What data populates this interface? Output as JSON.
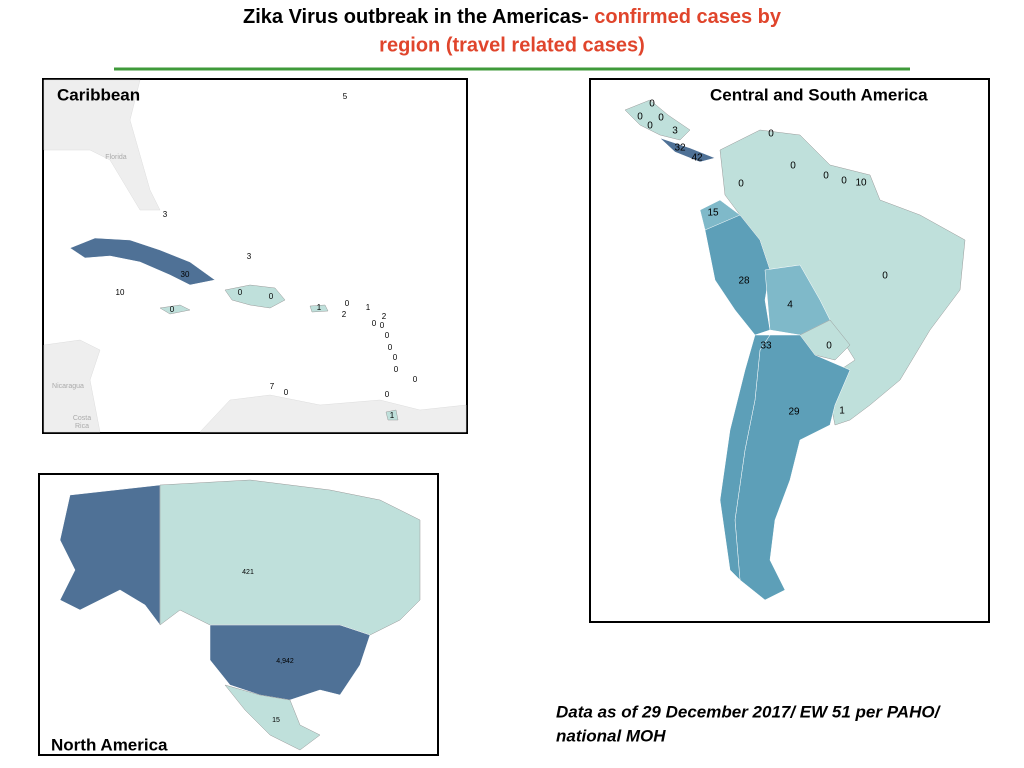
{
  "title": {
    "part1": "Zika Virus outbreak in the Americas-",
    "part2": "confirmed cases by",
    "part3": "region (travel related cases)"
  },
  "caribbean": {
    "title": "Caribbean",
    "base_labels": [
      "Florida",
      "Nicaragua",
      "Costa",
      "Rica"
    ],
    "labels": [
      "5",
      "3",
      "3",
      "30",
      "10",
      "0",
      "0",
      "0",
      "1",
      "0",
      "2",
      "1",
      "2",
      "0",
      "0",
      "0",
      "0",
      "0",
      "0",
      "0",
      "7",
      "0",
      "0",
      "1"
    ]
  },
  "central_south": {
    "title": "Central and South America",
    "labels": [
      "0",
      "0",
      "0",
      "0",
      "3",
      "0",
      "32",
      "42",
      "0",
      "0",
      "0",
      "10",
      "0",
      "15",
      "0",
      "28",
      "4",
      "33",
      "0",
      "29",
      "1"
    ]
  },
  "north_america": {
    "title": "North America",
    "labels": [
      "421",
      "4,942",
      "15"
    ]
  },
  "footnote": {
    "line1": "Data as of 29 December 2017/ EW 51 per PAHO/",
    "line2": "national MOH"
  }
}
